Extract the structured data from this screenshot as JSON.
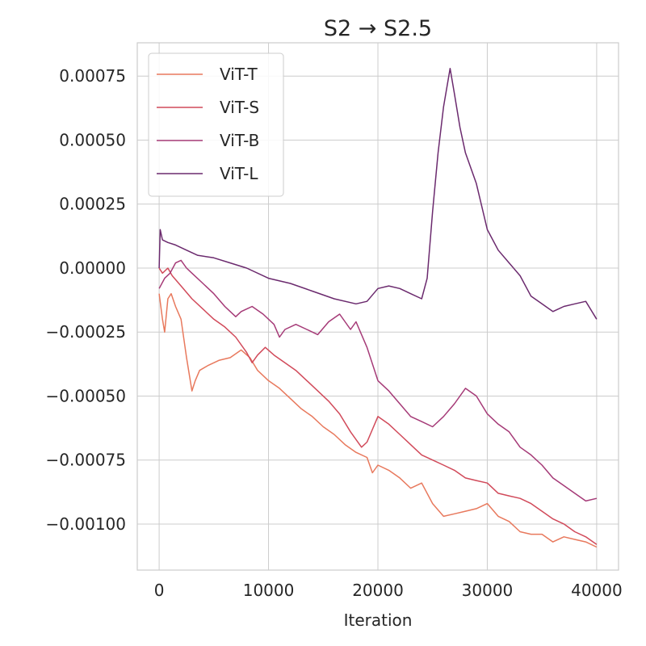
{
  "chart_data": {
    "type": "line",
    "title": "S2 → S2.5",
    "xlabel": "Iteration",
    "ylabel": "",
    "xlim": [
      -2000,
      42000
    ],
    "ylim": [
      -0.00118,
      0.00088
    ],
    "xticks": [
      0,
      10000,
      20000,
      30000,
      40000
    ],
    "xtick_labels": [
      "0",
      "10000",
      "20000",
      "30000",
      "40000"
    ],
    "yticks": [
      0.00075,
      0.0005,
      0.00025,
      0.0,
      -0.00025,
      -0.0005,
      -0.00075,
      -0.001
    ],
    "ytick_labels": [
      "0.00075",
      "0.00050",
      "0.00025",
      "0.00000",
      "−0.00025",
      "−0.00050",
      "−0.00075",
      "−0.00100"
    ],
    "grid": true,
    "legend_position": "top-left",
    "series": [
      {
        "name": "ViT-T",
        "color": "#e8795d",
        "points": [
          [
            0,
            -0.0001
          ],
          [
            300,
            -0.0002
          ],
          [
            500,
            -0.00025
          ],
          [
            800,
            -0.00012
          ],
          [
            1100,
            -0.0001
          ],
          [
            1500,
            -0.00015
          ],
          [
            2000,
            -0.0002
          ],
          [
            2500,
            -0.00035
          ],
          [
            3000,
            -0.00048
          ],
          [
            3300,
            -0.00044
          ],
          [
            3700,
            -0.0004
          ],
          [
            4500,
            -0.00038
          ],
          [
            5500,
            -0.00036
          ],
          [
            6500,
            -0.00035
          ],
          [
            7500,
            -0.00032
          ],
          [
            8300,
            -0.00035
          ],
          [
            9000,
            -0.0004
          ],
          [
            10000,
            -0.00044
          ],
          [
            11000,
            -0.00047
          ],
          [
            12000,
            -0.00051
          ],
          [
            13000,
            -0.00055
          ],
          [
            14000,
            -0.00058
          ],
          [
            15000,
            -0.00062
          ],
          [
            16000,
            -0.00065
          ],
          [
            17000,
            -0.00069
          ],
          [
            18000,
            -0.00072
          ],
          [
            19000,
            -0.00074
          ],
          [
            19500,
            -0.0008
          ],
          [
            20000,
            -0.00077
          ],
          [
            21000,
            -0.00079
          ],
          [
            22000,
            -0.00082
          ],
          [
            23000,
            -0.00086
          ],
          [
            24000,
            -0.00084
          ],
          [
            25000,
            -0.00092
          ],
          [
            26000,
            -0.00097
          ],
          [
            27000,
            -0.00096
          ],
          [
            28000,
            -0.00095
          ],
          [
            29000,
            -0.00094
          ],
          [
            30000,
            -0.00092
          ],
          [
            31000,
            -0.00097
          ],
          [
            32000,
            -0.00099
          ],
          [
            33000,
            -0.00103
          ],
          [
            34000,
            -0.00104
          ],
          [
            35000,
            -0.00104
          ],
          [
            36000,
            -0.00107
          ],
          [
            37000,
            -0.00105
          ],
          [
            38000,
            -0.00106
          ],
          [
            39000,
            -0.00107
          ],
          [
            40000,
            -0.00109
          ]
        ]
      },
      {
        "name": "ViT-S",
        "color": "#d14a5a",
        "points": [
          [
            0,
            0.0
          ],
          [
            300,
            -2e-05
          ],
          [
            800,
            0.0
          ],
          [
            1200,
            -3e-05
          ],
          [
            2000,
            -7e-05
          ],
          [
            3000,
            -0.00012
          ],
          [
            4000,
            -0.00016
          ],
          [
            5000,
            -0.0002
          ],
          [
            6000,
            -0.00023
          ],
          [
            7000,
            -0.00027
          ],
          [
            8000,
            -0.00033
          ],
          [
            8500,
            -0.00037
          ],
          [
            9000,
            -0.00034
          ],
          [
            9700,
            -0.00031
          ],
          [
            10500,
            -0.00034
          ],
          [
            11500,
            -0.00037
          ],
          [
            12500,
            -0.0004
          ],
          [
            13500,
            -0.00044
          ],
          [
            14500,
            -0.00048
          ],
          [
            15500,
            -0.00052
          ],
          [
            16500,
            -0.00057
          ],
          [
            17500,
            -0.00064
          ],
          [
            18500,
            -0.0007
          ],
          [
            19000,
            -0.00068
          ],
          [
            20000,
            -0.00058
          ],
          [
            21000,
            -0.00061
          ],
          [
            22000,
            -0.00065
          ],
          [
            23000,
            -0.00069
          ],
          [
            24000,
            -0.00073
          ],
          [
            25000,
            -0.00075
          ],
          [
            26000,
            -0.00077
          ],
          [
            27000,
            -0.00079
          ],
          [
            28000,
            -0.00082
          ],
          [
            29000,
            -0.00083
          ],
          [
            30000,
            -0.00084
          ],
          [
            31000,
            -0.00088
          ],
          [
            32000,
            -0.00089
          ],
          [
            33000,
            -0.0009
          ],
          [
            34000,
            -0.00092
          ],
          [
            35000,
            -0.00095
          ],
          [
            36000,
            -0.00098
          ],
          [
            37000,
            -0.001
          ],
          [
            38000,
            -0.00103
          ],
          [
            39000,
            -0.00105
          ],
          [
            40000,
            -0.00108
          ]
        ]
      },
      {
        "name": "ViT-B",
        "color": "#a53a77",
        "points": [
          [
            0,
            -8e-05
          ],
          [
            500,
            -4e-05
          ],
          [
            1000,
            -2e-05
          ],
          [
            1500,
            2e-05
          ],
          [
            2000,
            3e-05
          ],
          [
            2500,
            0.0
          ],
          [
            3000,
            -2e-05
          ],
          [
            4000,
            -6e-05
          ],
          [
            5000,
            -0.0001
          ],
          [
            6000,
            -0.00015
          ],
          [
            7000,
            -0.00019
          ],
          [
            7500,
            -0.00017
          ],
          [
            8500,
            -0.00015
          ],
          [
            9500,
            -0.00018
          ],
          [
            10500,
            -0.00022
          ],
          [
            11000,
            -0.00027
          ],
          [
            11500,
            -0.00024
          ],
          [
            12500,
            -0.00022
          ],
          [
            13500,
            -0.00024
          ],
          [
            14500,
            -0.00026
          ],
          [
            15500,
            -0.00021
          ],
          [
            16500,
            -0.00018
          ],
          [
            17500,
            -0.00024
          ],
          [
            18000,
            -0.00021
          ],
          [
            19000,
            -0.00031
          ],
          [
            20000,
            -0.00044
          ],
          [
            21000,
            -0.00048
          ],
          [
            22000,
            -0.00053
          ],
          [
            23000,
            -0.00058
          ],
          [
            24000,
            -0.0006
          ],
          [
            25000,
            -0.00062
          ],
          [
            26000,
            -0.00058
          ],
          [
            27000,
            -0.00053
          ],
          [
            28000,
            -0.00047
          ],
          [
            29000,
            -0.0005
          ],
          [
            30000,
            -0.00057
          ],
          [
            31000,
            -0.00061
          ],
          [
            32000,
            -0.00064
          ],
          [
            33000,
            -0.0007
          ],
          [
            34000,
            -0.00073
          ],
          [
            35000,
            -0.00077
          ],
          [
            36000,
            -0.00082
          ],
          [
            37000,
            -0.00085
          ],
          [
            38000,
            -0.00088
          ],
          [
            39000,
            -0.00091
          ],
          [
            40000,
            -0.0009
          ]
        ]
      },
      {
        "name": "ViT-L",
        "color": "#6b2a6e",
        "points": [
          [
            0,
            0.0
          ],
          [
            100,
            0.00015
          ],
          [
            300,
            0.00011
          ],
          [
            800,
            0.0001
          ],
          [
            1500,
            9e-05
          ],
          [
            2500,
            7e-05
          ],
          [
            3500,
            5e-05
          ],
          [
            5000,
            4e-05
          ],
          [
            6500,
            2e-05
          ],
          [
            8000,
            0.0
          ],
          [
            10000,
            -4e-05
          ],
          [
            12000,
            -6e-05
          ],
          [
            14000,
            -9e-05
          ],
          [
            16000,
            -0.00012
          ],
          [
            18000,
            -0.00014
          ],
          [
            19000,
            -0.00013
          ],
          [
            20000,
            -8e-05
          ],
          [
            21000,
            -7e-05
          ],
          [
            22000,
            -8e-05
          ],
          [
            23000,
            -0.0001
          ],
          [
            24000,
            -0.00012
          ],
          [
            24500,
            -4e-05
          ],
          [
            25000,
            0.00022
          ],
          [
            25500,
            0.00045
          ],
          [
            26000,
            0.00063
          ],
          [
            26600,
            0.00078
          ],
          [
            27000,
            0.00068
          ],
          [
            27500,
            0.00055
          ],
          [
            28000,
            0.00045
          ],
          [
            29000,
            0.00033
          ],
          [
            30000,
            0.00015
          ],
          [
            31000,
            7e-05
          ],
          [
            32000,
            2e-05
          ],
          [
            33000,
            -3e-05
          ],
          [
            34000,
            -0.00011
          ],
          [
            35000,
            -0.00014
          ],
          [
            36000,
            -0.00017
          ],
          [
            37000,
            -0.00015
          ],
          [
            38000,
            -0.00014
          ],
          [
            39000,
            -0.00013
          ],
          [
            40000,
            -0.0002
          ]
        ]
      }
    ]
  }
}
